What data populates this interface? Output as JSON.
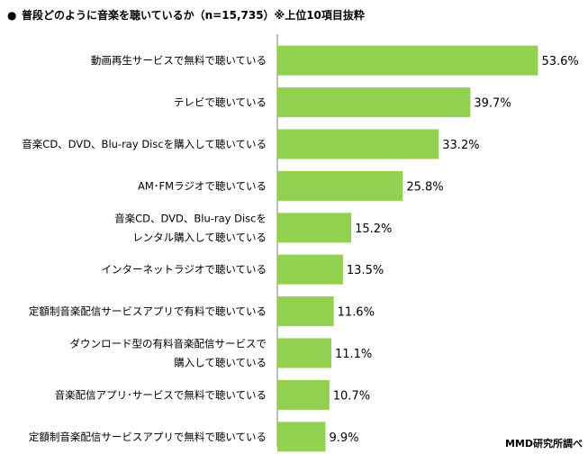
{
  "chart_data": {
    "type": "bar",
    "orientation": "horizontal",
    "title": "普段どのように音楽を聴いているか（n=15,735）※上位10項目抜粋",
    "bullet": "●",
    "source": "MMD研究所調べ",
    "bar_color": "#92D050",
    "value_suffix": "%",
    "xlim": [
      0,
      60
    ],
    "grid": false,
    "categories": [
      [
        "動画再生サービスで無料で聴いている"
      ],
      [
        "テレビで聴いている"
      ],
      [
        "音楽CD、DVD、Blu-ray Discを購入して聴いている"
      ],
      [
        "AM･FMラジオで聴いている"
      ],
      [
        "音楽CD、DVD、Blu-ray Discを",
        "レンタル購入して聴いている"
      ],
      [
        "インターネットラジオで聴いている"
      ],
      [
        "定額制音楽配信サービスアプリで有料で聴いている"
      ],
      [
        "ダウンロード型の有料音楽配信サービスで",
        "購入して聴いている"
      ],
      [
        "音楽配信アプリ･サービスで無料で聴いている"
      ],
      [
        "定額制音楽配信サービスアプリで無料で聴いている"
      ]
    ],
    "values": [
      53.6,
      39.7,
      33.2,
      25.8,
      15.2,
      13.5,
      11.6,
      11.1,
      10.7,
      9.9
    ],
    "value_labels": [
      "53.6%",
      "39.7%",
      "33.2%",
      "25.8%",
      "15.2%",
      "13.5%",
      "11.6%",
      "11.1%",
      "10.7%",
      "9.9%"
    ]
  }
}
